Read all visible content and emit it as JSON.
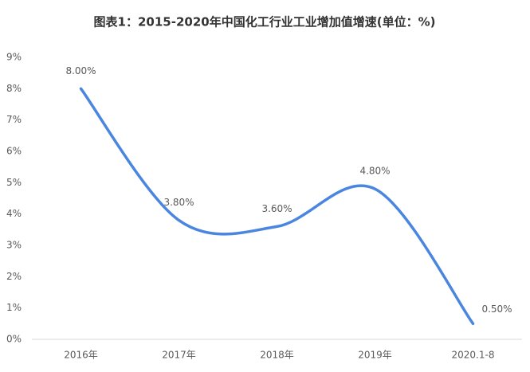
{
  "chart_data": {
    "type": "line",
    "title": "图表1：2015-2020年中国化工行业工业增加值增速(单位：%)",
    "categories": [
      "2016年",
      "2017年",
      "2018年",
      "2019年",
      "2020.1-8"
    ],
    "series": [
      {
        "name": "增速",
        "color": "#4a86e0",
        "values": [
          8,
          3.8,
          3.6,
          4.8,
          0.5
        ],
        "value_labels": [
          "8.00%",
          "3.80%",
          "3.60%",
          "4.80%",
          "0.50%"
        ]
      }
    ],
    "ylim": [
      0,
      9
    ],
    "yticks": [
      {
        "value": 0,
        "label": "0%"
      },
      {
        "value": 1,
        "label": "1%"
      },
      {
        "value": 2,
        "label": "2%"
      },
      {
        "value": 3,
        "label": "3%"
      },
      {
        "value": 4,
        "label": "4%"
      },
      {
        "value": 5,
        "label": "5%"
      },
      {
        "value": 6,
        "label": "6%"
      },
      {
        "value": 7,
        "label": "7%"
      },
      {
        "value": 8,
        "label": "8%"
      },
      {
        "value": 9,
        "label": "9%"
      }
    ],
    "grid": false
  }
}
